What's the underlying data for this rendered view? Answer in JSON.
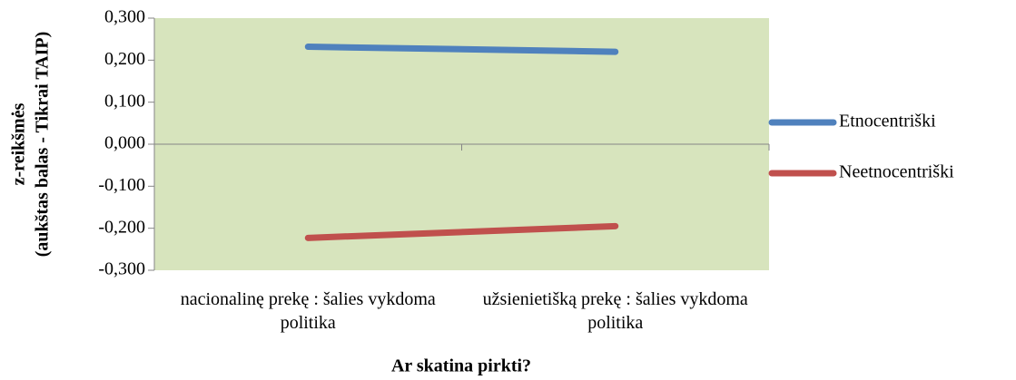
{
  "chart_data": {
    "type": "line",
    "categories": [
      "nacionalinę prekę : šalies vykdoma politika",
      "užsienietišką prekę : šalies vykdoma politika"
    ],
    "series": [
      {
        "name": "Etnocentriški",
        "color": "#4f81bd",
        "values": [
          0.232,
          0.22
        ]
      },
      {
        "name": "Neetnocentriški",
        "color": "#c0504d",
        "values": [
          -0.223,
          -0.195
        ]
      }
    ],
    "ylim": [
      -0.3,
      0.3
    ],
    "yticks": [
      {
        "value": 0.3,
        "label": "0,300"
      },
      {
        "value": 0.2,
        "label": "0,200"
      },
      {
        "value": 0.1,
        "label": "0,100"
      },
      {
        "value": 0,
        "label": "0,000"
      },
      {
        "value": -0.1,
        "label": "-0,100"
      },
      {
        "value": -0.2,
        "label": "-0,200"
      },
      {
        "value": -0.3,
        "label": "-0,300"
      }
    ],
    "xlabel": "Ar skatina pirkti?",
    "ylabel": [
      "z-reikšmės",
      "(aukštas balas - Tikrai TAIP)"
    ],
    "plot_background": "#d7e4bd",
    "legend": "right"
  }
}
